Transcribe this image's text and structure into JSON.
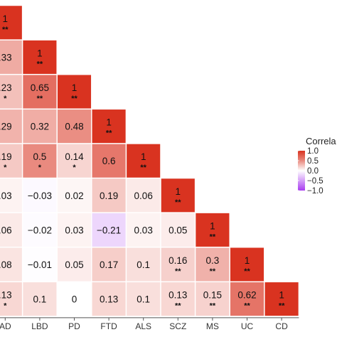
{
  "chart_data": {
    "type": "heatmap",
    "title": "",
    "xlabel": "",
    "ylabel": "",
    "categories": [
      "AD",
      "LBD",
      "PD",
      "FTD",
      "ALS",
      "SCZ",
      "MS",
      "UC",
      "CD"
    ],
    "visible_row_labels": [
      "33",
      "23",
      "29",
      "19",
      "03",
      "06",
      "08",
      "13"
    ],
    "cells": [
      {
        "row": 0,
        "col": 0,
        "value": 1,
        "label": "1",
        "sig": "**"
      },
      {
        "row": 1,
        "col": 0,
        "value": 0.33,
        "label": ".33",
        "sig": ""
      },
      {
        "row": 1,
        "col": 1,
        "value": 1,
        "label": "1",
        "sig": "**"
      },
      {
        "row": 2,
        "col": 0,
        "value": 0.23,
        "label": ".23",
        "sig": "*"
      },
      {
        "row": 2,
        "col": 1,
        "value": 0.65,
        "label": "0.65",
        "sig": "**"
      },
      {
        "row": 2,
        "col": 2,
        "value": 1,
        "label": "1",
        "sig": "**"
      },
      {
        "row": 3,
        "col": 0,
        "value": 0.29,
        "label": ".29",
        "sig": ""
      },
      {
        "row": 3,
        "col": 1,
        "value": 0.32,
        "label": "0.32",
        "sig": ""
      },
      {
        "row": 3,
        "col": 2,
        "value": 0.48,
        "label": "0.48",
        "sig": ""
      },
      {
        "row": 3,
        "col": 3,
        "value": 1,
        "label": "1",
        "sig": "**"
      },
      {
        "row": 4,
        "col": 0,
        "value": 0.19,
        "label": ".19",
        "sig": "*"
      },
      {
        "row": 4,
        "col": 1,
        "value": 0.5,
        "label": "0.5",
        "sig": "*"
      },
      {
        "row": 4,
        "col": 2,
        "value": 0.14,
        "label": "0.14",
        "sig": "*"
      },
      {
        "row": 4,
        "col": 3,
        "value": 0.6,
        "label": "0.6",
        "sig": ""
      },
      {
        "row": 4,
        "col": 4,
        "value": 1,
        "label": "1",
        "sig": "**"
      },
      {
        "row": 5,
        "col": 0,
        "value": 0.03,
        "label": ".03",
        "sig": ""
      },
      {
        "row": 5,
        "col": 1,
        "value": -0.03,
        "label": "−0.03",
        "sig": ""
      },
      {
        "row": 5,
        "col": 2,
        "value": 0.02,
        "label": "0.02",
        "sig": ""
      },
      {
        "row": 5,
        "col": 3,
        "value": 0.19,
        "label": "0.19",
        "sig": ""
      },
      {
        "row": 5,
        "col": 4,
        "value": 0.06,
        "label": "0.06",
        "sig": ""
      },
      {
        "row": 5,
        "col": 5,
        "value": 1,
        "label": "1",
        "sig": "**"
      },
      {
        "row": 6,
        "col": 0,
        "value": 0.06,
        "label": ".06",
        "sig": ""
      },
      {
        "row": 6,
        "col": 1,
        "value": -0.02,
        "label": "−0.02",
        "sig": ""
      },
      {
        "row": 6,
        "col": 2,
        "value": 0.03,
        "label": "0.03",
        "sig": ""
      },
      {
        "row": 6,
        "col": 3,
        "value": -0.21,
        "label": "−0.21",
        "sig": ""
      },
      {
        "row": 6,
        "col": 4,
        "value": 0.03,
        "label": "0.03",
        "sig": ""
      },
      {
        "row": 6,
        "col": 5,
        "value": 0.05,
        "label": "0.05",
        "sig": ""
      },
      {
        "row": 6,
        "col": 6,
        "value": 1,
        "label": "1",
        "sig": "**"
      },
      {
        "row": 7,
        "col": 0,
        "value": 0.08,
        "label": ".08",
        "sig": ""
      },
      {
        "row": 7,
        "col": 1,
        "value": -0.01,
        "label": "−0.01",
        "sig": ""
      },
      {
        "row": 7,
        "col": 2,
        "value": 0.05,
        "label": "0.05",
        "sig": ""
      },
      {
        "row": 7,
        "col": 3,
        "value": 0.17,
        "label": "0.17",
        "sig": ""
      },
      {
        "row": 7,
        "col": 4,
        "value": 0.1,
        "label": "0.1",
        "sig": ""
      },
      {
        "row": 7,
        "col": 5,
        "value": 0.16,
        "label": "0.16",
        "sig": "**"
      },
      {
        "row": 7,
        "col": 6,
        "value": 0.3,
        "label": "0.3",
        "sig": "**"
      },
      {
        "row": 7,
        "col": 7,
        "value": 1,
        "label": "1",
        "sig": "**"
      },
      {
        "row": 8,
        "col": 0,
        "value": 0.13,
        "label": ".13",
        "sig": "*"
      },
      {
        "row": 8,
        "col": 1,
        "value": 0.1,
        "label": "0.1",
        "sig": ""
      },
      {
        "row": 8,
        "col": 2,
        "value": 0,
        "label": "0",
        "sig": ""
      },
      {
        "row": 8,
        "col": 3,
        "value": 0.13,
        "label": "0.13",
        "sig": ""
      },
      {
        "row": 8,
        "col": 4,
        "value": 0.1,
        "label": "0.1",
        "sig": ""
      },
      {
        "row": 8,
        "col": 5,
        "value": 0.13,
        "label": "0.13",
        "sig": "**"
      },
      {
        "row": 8,
        "col": 6,
        "value": 0.15,
        "label": "0.15",
        "sig": "**"
      },
      {
        "row": 8,
        "col": 7,
        "value": 0.62,
        "label": "0.62",
        "sig": "**"
      },
      {
        "row": 8,
        "col": 8,
        "value": 1,
        "label": "1",
        "sig": "**"
      }
    ],
    "color_scale": {
      "range": [
        -1,
        1
      ],
      "low": "#a83cf0",
      "mid": "#ffffff",
      "high": "#d93320"
    },
    "legend": {
      "title": "Correla",
      "ticks": [
        "1.0",
        "0.5",
        "0.0",
        "−0.5",
        "−1.0"
      ],
      "tick_values": [
        1,
        0.5,
        0,
        -0.5,
        -1
      ],
      "placement": "right"
    },
    "grid": false
  }
}
